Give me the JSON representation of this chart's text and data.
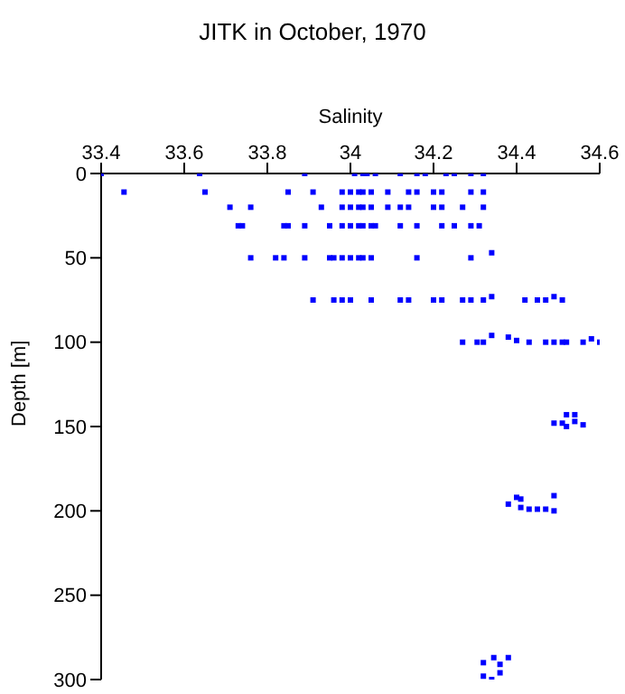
{
  "chart_data": {
    "type": "scatter",
    "title": "JITK in October, 1970",
    "xlabel": "Salinity",
    "ylabel": "Depth [m]",
    "x": [
      33.4,
      33.637,
      33.89,
      34.01,
      34.03,
      34.04,
      34.06,
      34.12,
      34.16,
      34.18,
      34.23,
      34.25,
      34.29,
      34.32,
      33.455,
      33.65,
      33.85,
      33.91,
      33.98,
      34.0,
      34.02,
      34.03,
      34.05,
      34.09,
      34.14,
      34.16,
      34.2,
      34.22,
      34.29,
      34.32,
      33.71,
      33.76,
      33.93,
      33.98,
      34.0,
      34.02,
      34.03,
      34.05,
      34.09,
      34.12,
      34.14,
      34.2,
      34.22,
      34.27,
      34.32,
      33.73,
      33.74,
      33.84,
      33.85,
      33.89,
      33.95,
      33.98,
      34.0,
      34.02,
      34.03,
      34.05,
      34.06,
      34.12,
      34.16,
      34.22,
      34.25,
      34.29,
      34.31,
      33.76,
      33.82,
      33.84,
      33.89,
      33.95,
      33.96,
      33.98,
      34.0,
      34.02,
      34.03,
      34.05,
      34.16,
      34.29,
      34.34,
      33.91,
      33.96,
      33.98,
      34.0,
      34.05,
      34.12,
      34.14,
      34.2,
      34.22,
      34.27,
      34.29,
      34.32,
      34.34,
      34.42,
      34.45,
      34.47,
      34.49,
      34.51,
      34.27,
      34.305,
      34.32,
      34.34,
      34.38,
      34.4,
      34.43,
      34.47,
      34.49,
      34.51,
      34.52,
      34.56,
      34.58,
      34.6,
      34.49,
      34.51,
      34.52,
      34.52,
      34.54,
      34.54,
      34.56,
      34.38,
      34.4,
      34.41,
      34.41,
      34.43,
      34.45,
      34.47,
      34.49,
      34.49,
      34.32,
      34.32,
      34.34,
      34.345,
      34.36,
      34.36,
      34.38
    ],
    "values": [
      0,
      0,
      0,
      0,
      0,
      0,
      0,
      0,
      0,
      0,
      0,
      0,
      0,
      0,
      11,
      11,
      11,
      11,
      11,
      11,
      11,
      11,
      11,
      11,
      11,
      11,
      11,
      11,
      11,
      11,
      20,
      20,
      20,
      20,
      20,
      20,
      20,
      20,
      20,
      20,
      20,
      20,
      20,
      20,
      20,
      31,
      31,
      31,
      31,
      31,
      31,
      31,
      31,
      31,
      31,
      31,
      31,
      31,
      31,
      31,
      31,
      31,
      31,
      50,
      50,
      50,
      50,
      50,
      50,
      50,
      50,
      50,
      50,
      50,
      50,
      50,
      47,
      75,
      75,
      75,
      75,
      75,
      75,
      75,
      75,
      75,
      75,
      75,
      75,
      73,
      75,
      75,
      75,
      73,
      75,
      100,
      100,
      100,
      96,
      97,
      99,
      100,
      100,
      100,
      100,
      100,
      100,
      98,
      100,
      148,
      148,
      143,
      150,
      143,
      147,
      149,
      196,
      192,
      193,
      198,
      199,
      199,
      199,
      200,
      191,
      290,
      298,
      300,
      287,
      291,
      296,
      287
    ],
    "color": "#0000ff",
    "marker": "square",
    "xlim": [
      33.4,
      34.6
    ],
    "xticks": [
      33.4,
      33.6,
      33.8,
      34,
      34.2,
      34.4,
      34.6
    ],
    "ylim": [
      300,
      0
    ],
    "yticks": [
      0,
      50,
      100,
      150,
      200,
      250,
      300
    ]
  }
}
